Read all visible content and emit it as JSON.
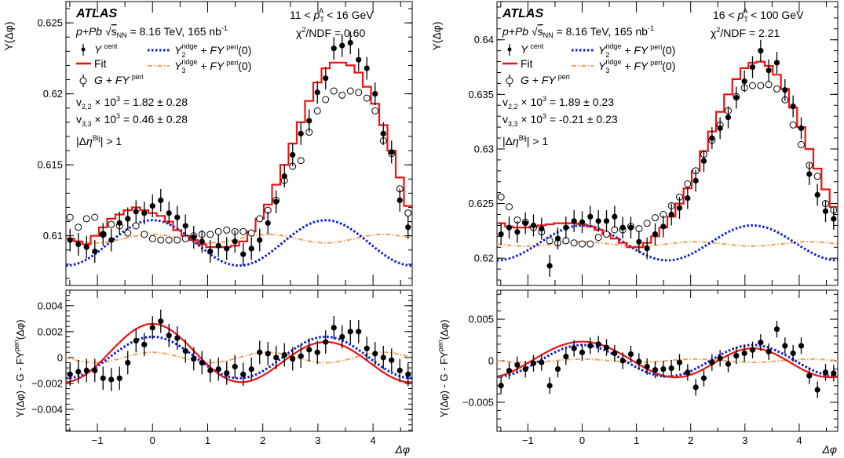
{
  "chart_data": [
    {
      "type": "scatter",
      "panel": "left-top",
      "title": "ATLAS",
      "system": "p+Pb",
      "energy_text": "= 8.16 TeV, 165 nb",
      "energy_exp": "-1",
      "pt_range": "11 < p_T^A < 16 GeV",
      "pt_low": "11",
      "pt_high": "< 16 GeV",
      "chi2": "= 0.60",
      "v22": "= 1.82 ± 0.28",
      "v33": "= 0.46 ± 0.28",
      "eta_cut": "| > 1",
      "ylabel": "Y(Δφ)",
      "xlim": [
        -1.57,
        4.71
      ],
      "ylim": [
        0.6065,
        0.6265
      ],
      "yticks": [
        "0.61",
        "0.615",
        "0.62",
        "0.625"
      ],
      "yticks_val": [
        0.61,
        0.615,
        0.62,
        0.625
      ],
      "legend": {
        "cent": "Y",
        "cent_sup": "cent",
        "fit": "Fit",
        "peri": "G + FY",
        "peri_sup": "peri",
        "y2": "Y",
        "y2_sub": "2",
        "y2_sup": "ridge",
        "y2_tail": "+ FY",
        "y2_tail_sup": "peri",
        "y2_end": "(0)",
        "y3": "Y",
        "y3_sub": "3",
        "y3_sup": "ridge",
        "y3_tail": "+ FY",
        "y3_tail_sup": "peri",
        "y3_end": "(0)"
      },
      "cent_values": [
        0.6097,
        0.6094,
        0.6092,
        0.6089,
        0.6101,
        0.6097,
        0.6109,
        0.6112,
        0.6117,
        0.6116,
        0.6121,
        0.6125,
        0.6116,
        0.6113,
        0.6107,
        0.6099,
        0.6096,
        0.6089,
        0.6093,
        0.6091,
        0.6096,
        0.6087,
        0.6091,
        0.6097,
        0.6109,
        0.6124,
        0.6142,
        0.6157,
        0.6172,
        0.6181,
        0.6201,
        0.6211,
        0.6232,
        0.6234,
        0.6236,
        0.6224,
        0.6218,
        0.62,
        0.6172,
        0.6159,
        0.6125,
        0.6106
      ],
      "peri_values": [
        0.6113,
        0.6106,
        0.6112,
        0.6113,
        0.6101,
        0.6108,
        0.6107,
        0.6102,
        0.6107,
        0.6101,
        0.6098,
        0.6097,
        0.6097,
        0.6097,
        0.6098,
        0.61,
        0.6101,
        0.6101,
        0.6103,
        0.6104,
        0.6103,
        0.6103,
        0.6102,
        0.6112,
        0.6118,
        0.6125,
        0.6139,
        0.6149,
        0.6153,
        0.6173,
        0.6188,
        0.6196,
        0.6202,
        0.6199,
        0.6202,
        0.6201,
        0.6197,
        0.6188,
        0.6167,
        0.6158,
        0.6133,
        0.6116
      ],
      "fit_values": [
        0.6098,
        0.6096,
        0.6094,
        0.61,
        0.6106,
        0.6112,
        0.6115,
        0.6118,
        0.612,
        0.6118,
        0.6116,
        0.6114,
        0.611,
        0.6104,
        0.61,
        0.6097,
        0.6094,
        0.6092,
        0.6092,
        0.6092,
        0.6093,
        0.6096,
        0.6103,
        0.6112,
        0.6122,
        0.6136,
        0.615,
        0.6165,
        0.618,
        0.6195,
        0.6208,
        0.6218,
        0.6222,
        0.6222,
        0.622,
        0.6215,
        0.6205,
        0.6193,
        0.6178,
        0.616,
        0.6141,
        0.6121
      ],
      "y2_base": 0.6095,
      "y2_amp": 0.0016,
      "y3_base": 0.6098,
      "y3_amp": 0.0003,
      "err": 0.0008
    },
    {
      "type": "scatter",
      "panel": "right-top",
      "title": "ATLAS",
      "system": "p+Pb",
      "energy_text": "= 8.16 TeV, 165 nb",
      "energy_exp": "-1",
      "pt_low": "16",
      "pt_high": "< 100 GeV",
      "chi2": "= 2.21",
      "v22": "= 1.89 ± 0.23",
      "v33": "= -0.21 ± 0.23",
      "eta_cut": "| > 1",
      "ylabel": "Y(Δφ)",
      "xlim": [
        -1.57,
        4.71
      ],
      "ylim": [
        0.6175,
        0.6435
      ],
      "yticks": [
        "0.62",
        "0.625",
        "0.63",
        "0.635",
        "0.64"
      ],
      "yticks_val": [
        0.62,
        0.625,
        0.63,
        0.635,
        0.64
      ],
      "cent_values": [
        0.6222,
        0.6228,
        0.6224,
        0.6232,
        0.623,
        0.6227,
        0.6193,
        0.6218,
        0.6228,
        0.6234,
        0.6233,
        0.6238,
        0.6234,
        0.6234,
        0.6238,
        0.6228,
        0.6228,
        0.6215,
        0.6209,
        0.6222,
        0.6229,
        0.624,
        0.6246,
        0.6255,
        0.6271,
        0.6289,
        0.631,
        0.6319,
        0.6329,
        0.6347,
        0.6362,
        0.6375,
        0.639,
        0.6372,
        0.6379,
        0.6354,
        0.6339,
        0.6319,
        0.6277,
        0.6258,
        0.6243,
        0.6236
      ],
      "peri_values": [
        0.6256,
        0.6247,
        0.6235,
        0.6233,
        0.6228,
        0.6224,
        0.6216,
        0.6214,
        0.6216,
        0.6214,
        0.6213,
        0.6213,
        0.6219,
        0.6222,
        0.6226,
        0.6226,
        0.6229,
        0.6227,
        0.6232,
        0.6237,
        0.624,
        0.6248,
        0.6256,
        0.6268,
        0.628,
        0.6295,
        0.6308,
        0.6322,
        0.6335,
        0.6348,
        0.6356,
        0.6358,
        0.6358,
        0.6359,
        0.6355,
        0.6345,
        0.6322,
        0.6304,
        0.6285,
        0.6275,
        0.625,
        0.6244
      ],
      "fit_values": [
        0.6232,
        0.6229,
        0.6228,
        0.6228,
        0.6229,
        0.623,
        0.6231,
        0.6232,
        0.6232,
        0.6232,
        0.6231,
        0.6229,
        0.6226,
        0.6222,
        0.6218,
        0.6214,
        0.621,
        0.621,
        0.6214,
        0.622,
        0.6228,
        0.6238,
        0.625,
        0.6264,
        0.628,
        0.6298,
        0.6316,
        0.6334,
        0.635,
        0.6364,
        0.6374,
        0.6379,
        0.638,
        0.6376,
        0.6368,
        0.6355,
        0.6338,
        0.632,
        0.63,
        0.6282,
        0.6263,
        0.6247
      ],
      "y2_base": 0.6214,
      "y2_amp": 0.0016,
      "y3_base": 0.6213,
      "y3_amp": 0.0002,
      "err": 0.001
    },
    {
      "type": "scatter",
      "panel": "left-bottom",
      "ylabel": "Y(Δφ) - G - FY",
      "ylabel_sup": "peri",
      "ylabel_end": "(Δφ)",
      "xlabel": "Δφ",
      "xlim": [
        -1.57,
        4.71
      ],
      "ylim": [
        -0.0057,
        0.0052
      ],
      "xticks": [
        "−1",
        "0",
        "1",
        "2",
        "3",
        "4"
      ],
      "xticks_val": [
        -1,
        0,
        1,
        2,
        3,
        4
      ],
      "yticks": [
        "−0.004",
        "−0.002",
        "0",
        "0.002",
        "0.004"
      ],
      "yticks_val": [
        -0.004,
        -0.002,
        0,
        0.002,
        0.004
      ],
      "resid_values": [
        -0.0013,
        -0.0011,
        -0.001,
        -0.001,
        -0.0016,
        -0.0017,
        -0.0016,
        -0.0004,
        0.0013,
        0.001,
        0.0023,
        0.0028,
        0.0017,
        0.0015,
        0.0005,
        -0.0001,
        -0.0004,
        -0.001,
        -0.0009,
        -0.0012,
        -0.0007,
        -0.0013,
        -0.0009,
        0.0004,
        0.0003,
        0.0,
        0.0002,
        -0.0001,
        0.0001,
        0.0006,
        0.0004,
        0.0012,
        0.0023,
        0.0016,
        0.002,
        0.002,
        0.0007,
        0.0003,
        0.0,
        -0.0002,
        -0.001,
        -0.0013
      ],
      "fit_amp2": 0.0019,
      "fit_amp3": 0.0001,
      "y2_amp": 0.0016,
      "y3_amp": 0.0004,
      "err": 0.0009
    },
    {
      "type": "scatter",
      "panel": "right-bottom",
      "ylabel": "Y(Δφ) - G - FY",
      "ylabel_sup": "peri",
      "ylabel_end": "(Δφ)",
      "xlabel": "Δφ",
      "xlim": [
        -1.57,
        4.71
      ],
      "ylim": [
        -0.0085,
        0.0085
      ],
      "xticks": [
        "−1",
        "0",
        "1",
        "2",
        "3",
        "4"
      ],
      "xticks_val": [
        -1,
        0,
        1,
        2,
        3,
        4
      ],
      "yticks": [
        "−0.005",
        "0",
        "0.005"
      ],
      "yticks_val": [
        -0.005,
        0,
        0.005
      ],
      "resid_values": [
        -0.003,
        -0.0012,
        -0.0005,
        -0.001,
        -0.0003,
        -0.0002,
        -0.003,
        -0.001,
        0.0005,
        0.0015,
        0.001,
        0.0018,
        0.002,
        0.0016,
        0.0009,
        0.0,
        0.0008,
        -0.0001,
        -0.0007,
        -0.0011,
        -0.001,
        -0.0009,
        -0.0002,
        -0.0014,
        -0.0032,
        -0.0021,
        -0.0002,
        0.0003,
        -0.0004,
        0.0006,
        0.0009,
        0.0013,
        0.0022,
        0.0011,
        0.0038,
        0.0018,
        0.0009,
        0.0018,
        -0.0018,
        -0.0035,
        -0.0014,
        -0.0015
      ],
      "fit_amp2": 0.0019,
      "fit_amp3": -0.0002,
      "y2_amp": 0.0019,
      "y3_amp": 0.0002,
      "err": 0.001
    }
  ],
  "colors": {
    "fit": "#ee1111",
    "y2": "#0a1ae0",
    "y3": "#f5a25a",
    "points": "#000000",
    "frame": "#000000"
  }
}
